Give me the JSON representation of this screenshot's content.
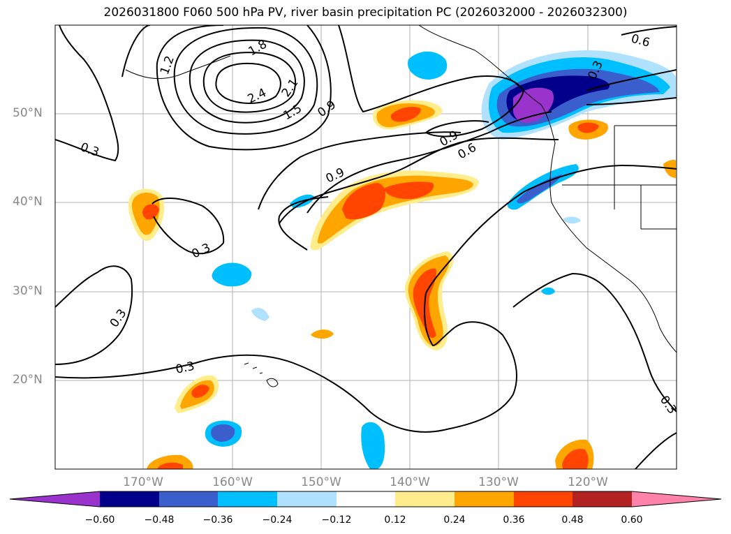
{
  "title": "2026031800 F060 500 hPa PV, river basin precipitation PC (2026032000 - 2026032300)",
  "lat_labels": [
    "50°N",
    "40°N",
    "30°N",
    "20°N"
  ],
  "lon_labels": [
    "170°W",
    "160°W",
    "150°W",
    "140°W",
    "130°W",
    "120°W"
  ],
  "contour_labels": [
    "1.2",
    "1.8",
    "2.4",
    "2.1",
    "1.5",
    "0.9",
    "0.9",
    "0.6",
    "0.9",
    "0.6",
    "0.3",
    "0.3",
    "0.3",
    "0.3",
    "0.3",
    "0.3"
  ],
  "colorbar": {
    "ticks": [
      "−0.60",
      "−0.48",
      "−0.36",
      "−0.24",
      "−0.12",
      "0.12",
      "0.24",
      "0.36",
      "0.48",
      "0.60"
    ],
    "colors": [
      "#9933cc",
      "#00008b",
      "#3a5fcd",
      "#00bfff",
      "#b0e2ff",
      "#ffffff",
      "#ffec8b",
      "#ffa500",
      "#ff4500",
      "#b22222",
      "#ff82ab"
    ]
  }
}
